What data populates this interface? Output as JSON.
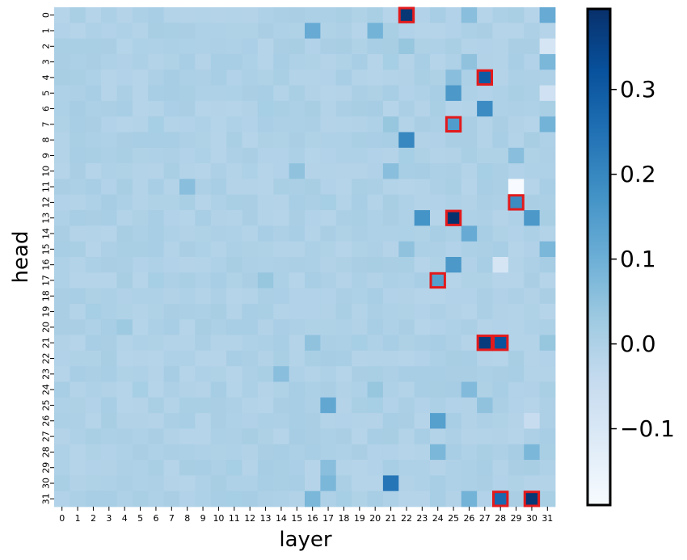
{
  "chart_data": {
    "type": "heatmap",
    "xlabel": "layer",
    "ylabel": "head",
    "x_categories": [
      "0",
      "1",
      "2",
      "3",
      "4",
      "5",
      "6",
      "7",
      "8",
      "9",
      "10",
      "11",
      "12",
      "13",
      "14",
      "15",
      "16",
      "17",
      "18",
      "19",
      "20",
      "21",
      "22",
      "23",
      "24",
      "25",
      "26",
      "27",
      "28",
      "29",
      "30",
      "31"
    ],
    "y_categories": [
      "0",
      "1",
      "2",
      "3",
      "4",
      "5",
      "6",
      "7",
      "8",
      "9",
      "10",
      "11",
      "12",
      "13",
      "14",
      "15",
      "16",
      "17",
      "18",
      "19",
      "20",
      "21",
      "22",
      "23",
      "24",
      "25",
      "26",
      "27",
      "28",
      "29",
      "30",
      "31"
    ],
    "value_range": [
      -0.19,
      0.395
    ],
    "colorbar_ticks": [
      {
        "value": -0.1,
        "label": "−0.1"
      },
      {
        "value": 0.0,
        "label": "0.0"
      },
      {
        "value": 0.1,
        "label": "0.1"
      },
      {
        "value": 0.2,
        "label": "0.2"
      },
      {
        "value": 0.3,
        "label": "0.3"
      }
    ],
    "colormap": "Blues",
    "background_value": 0.0,
    "special_cells": [
      {
        "head": 0,
        "layer": 22,
        "value": 0.38
      },
      {
        "head": 0,
        "layer": 26,
        "value": 0.06
      },
      {
        "head": 0,
        "layer": 31,
        "value": 0.11
      },
      {
        "head": 1,
        "layer": 16,
        "value": 0.11
      },
      {
        "head": 1,
        "layer": 20,
        "value": 0.09
      },
      {
        "head": 2,
        "layer": 31,
        "value": -0.09
      },
      {
        "head": 2,
        "layer": 22,
        "value": 0.04
      },
      {
        "head": 3,
        "layer": 26,
        "value": 0.05
      },
      {
        "head": 3,
        "layer": 31,
        "value": 0.08
      },
      {
        "head": 4,
        "layer": 27,
        "value": 0.3
      },
      {
        "head": 4,
        "layer": 25,
        "value": 0.06
      },
      {
        "head": 5,
        "layer": 25,
        "value": 0.16
      },
      {
        "head": 5,
        "layer": 31,
        "value": -0.07
      },
      {
        "head": 6,
        "layer": 27,
        "value": 0.19
      },
      {
        "head": 7,
        "layer": 25,
        "value": 0.15
      },
      {
        "head": 7,
        "layer": 31,
        "value": 0.09
      },
      {
        "head": 7,
        "layer": 21,
        "value": 0.04
      },
      {
        "head": 8,
        "layer": 22,
        "value": 0.2
      },
      {
        "head": 9,
        "layer": 29,
        "value": 0.06
      },
      {
        "head": 10,
        "layer": 15,
        "value": 0.05
      },
      {
        "head": 10,
        "layer": 21,
        "value": 0.06
      },
      {
        "head": 11,
        "layer": 29,
        "value": -0.19
      },
      {
        "head": 11,
        "layer": 8,
        "value": 0.06
      },
      {
        "head": 12,
        "layer": 29,
        "value": 0.19
      },
      {
        "head": 13,
        "layer": 23,
        "value": 0.17
      },
      {
        "head": 13,
        "layer": 25,
        "value": 0.39
      },
      {
        "head": 13,
        "layer": 30,
        "value": 0.16
      },
      {
        "head": 14,
        "layer": 26,
        "value": 0.11
      },
      {
        "head": 15,
        "layer": 22,
        "value": 0.05
      },
      {
        "head": 15,
        "layer": 31,
        "value": 0.08
      },
      {
        "head": 16,
        "layer": 25,
        "value": 0.16
      },
      {
        "head": 16,
        "layer": 28,
        "value": -0.09
      },
      {
        "head": 17,
        "layer": 24,
        "value": 0.14
      },
      {
        "head": 17,
        "layer": 13,
        "value": 0.04
      },
      {
        "head": 20,
        "layer": 4,
        "value": 0.03
      },
      {
        "head": 21,
        "layer": 27,
        "value": 0.37
      },
      {
        "head": 21,
        "layer": 28,
        "value": 0.32
      },
      {
        "head": 21,
        "layer": 16,
        "value": 0.05
      },
      {
        "head": 21,
        "layer": 31,
        "value": 0.04
      },
      {
        "head": 23,
        "layer": 14,
        "value": 0.06
      },
      {
        "head": 24,
        "layer": 26,
        "value": 0.07
      },
      {
        "head": 24,
        "layer": 20,
        "value": 0.04
      },
      {
        "head": 25,
        "layer": 17,
        "value": 0.12
      },
      {
        "head": 25,
        "layer": 27,
        "value": 0.05
      },
      {
        "head": 26,
        "layer": 24,
        "value": 0.14
      },
      {
        "head": 26,
        "layer": 30,
        "value": -0.05
      },
      {
        "head": 28,
        "layer": 24,
        "value": 0.08
      },
      {
        "head": 28,
        "layer": 30,
        "value": 0.08
      },
      {
        "head": 29,
        "layer": 17,
        "value": 0.06
      },
      {
        "head": 30,
        "layer": 21,
        "value": 0.24
      },
      {
        "head": 30,
        "layer": 17,
        "value": 0.08
      },
      {
        "head": 31,
        "layer": 28,
        "value": 0.27
      },
      {
        "head": 31,
        "layer": 30,
        "value": 0.38
      },
      {
        "head": 31,
        "layer": 26,
        "value": 0.09
      },
      {
        "head": 31,
        "layer": 16,
        "value": 0.08
      }
    ],
    "highlighted_cells": [
      {
        "head": 0,
        "layer": 22
      },
      {
        "head": 4,
        "layer": 27
      },
      {
        "head": 7,
        "layer": 25
      },
      {
        "head": 12,
        "layer": 29
      },
      {
        "head": 13,
        "layer": 25
      },
      {
        "head": 17,
        "layer": 24
      },
      {
        "head": 21,
        "layer": 27
      },
      {
        "head": 21,
        "layer": 28
      },
      {
        "head": 31,
        "layer": 28
      },
      {
        "head": 31,
        "layer": 30
      }
    ],
    "highlight_color": "#e31a1c"
  }
}
